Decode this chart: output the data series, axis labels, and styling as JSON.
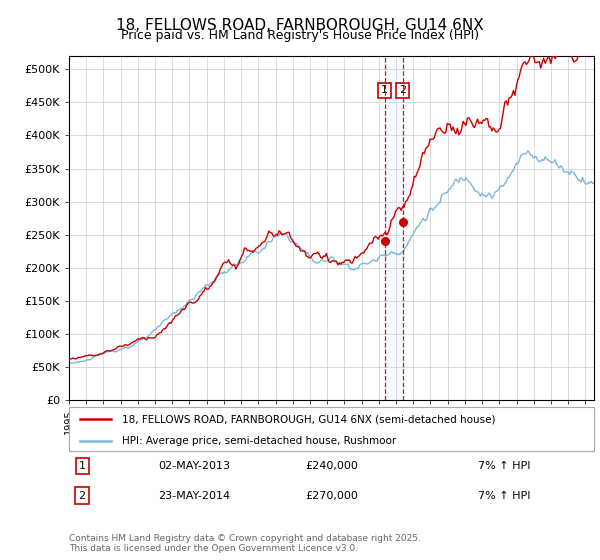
{
  "title": "18, FELLOWS ROAD, FARNBOROUGH, GU14 6NX",
  "subtitle": "Price paid vs. HM Land Registry's House Price Index (HPI)",
  "legend_line1": "18, FELLOWS ROAD, FARNBOROUGH, GU14 6NX (semi-detached house)",
  "legend_line2": "HPI: Average price, semi-detached house, Rushmoor",
  "sale1_date": "02-MAY-2013",
  "sale1_price": "£240,000",
  "sale1_hpi": "7% ↑ HPI",
  "sale1_year": 2013.33,
  "sale1_val": 240000,
  "sale2_date": "23-MAY-2014",
  "sale2_price": "£270,000",
  "sale2_hpi": "7% ↑ HPI",
  "sale2_year": 2014.39,
  "sale2_val": 270000,
  "hpi_color": "#7bb8d8",
  "price_color": "#cc0000",
  "vline1_color": "#cc0000",
  "vline2_color": "#aaccee",
  "footer": "Contains HM Land Registry data © Crown copyright and database right 2025.\nThis data is licensed under the Open Government Licence v3.0.",
  "ylim": [
    0,
    520000
  ],
  "yticks": [
    0,
    50000,
    100000,
    150000,
    200000,
    250000,
    300000,
    350000,
    400000,
    450000,
    500000
  ],
  "ytick_labels": [
    "£0",
    "£50K",
    "£100K",
    "£150K",
    "£200K",
    "£250K",
    "£300K",
    "£350K",
    "£400K",
    "£450K",
    "£500K"
  ],
  "xmin": 1995,
  "xmax": 2025.5
}
